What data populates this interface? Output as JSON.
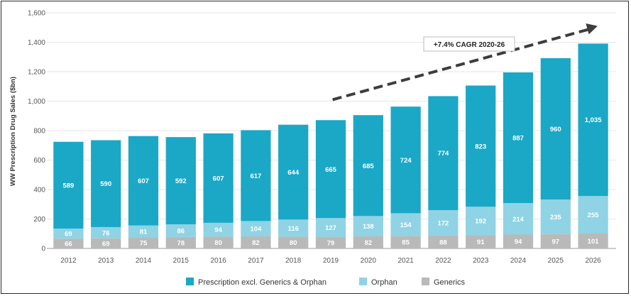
{
  "chart_data": {
    "type": "bar",
    "stacked": true,
    "ylabel": "WW Prescription Drug Sales ($bn)",
    "ylim": [
      0,
      1600
    ],
    "yticks": [
      "0",
      "200",
      "400",
      "600",
      "800",
      "1,000",
      "1,200",
      "1,400",
      "1,600"
    ],
    "ytick_values": [
      0,
      200,
      400,
      600,
      800,
      1000,
      1200,
      1400,
      1600
    ],
    "grid": true,
    "categories": [
      "2012",
      "2013",
      "2014",
      "2015",
      "2016",
      "2017",
      "2018",
      "2019",
      "2020",
      "2021",
      "2022",
      "2023",
      "2024",
      "2025",
      "2026"
    ],
    "series": [
      {
        "name": "Generics",
        "color": "#b9b9b9",
        "values": [
          66,
          69,
          75,
          78,
          80,
          82,
          80,
          79,
          82,
          85,
          88,
          91,
          94,
          97,
          101
        ],
        "labels": [
          "66",
          "69",
          "75",
          "78",
          "80",
          "82",
          "80",
          "79",
          "82",
          "85",
          "88",
          "91",
          "94",
          "97",
          "101"
        ]
      },
      {
        "name": "Orphan",
        "color": "#8fd3e4",
        "values": [
          69,
          76,
          81,
          86,
          94,
          104,
          116,
          127,
          138,
          154,
          172,
          192,
          214,
          235,
          255
        ],
        "labels": [
          "69",
          "76",
          "81",
          "86",
          "94",
          "104",
          "116",
          "127",
          "138",
          "154",
          "172",
          "192",
          "214",
          "235",
          "255"
        ]
      },
      {
        "name": "Prescription excl. Generics & Orphan",
        "color": "#1aa8c6",
        "values": [
          589,
          590,
          607,
          592,
          607,
          617,
          644,
          665,
          685,
          724,
          774,
          823,
          887,
          960,
          1035
        ],
        "labels": [
          "589",
          "590",
          "607",
          "592",
          "607",
          "617",
          "644",
          "665",
          "685",
          "724",
          "774",
          "823",
          "887",
          "960",
          "1,035"
        ]
      }
    ],
    "legend": {
      "position": "bottom",
      "items": [
        "Prescription excl. Generics & Orphan",
        "Orphan",
        "Generics"
      ]
    },
    "annotation": {
      "text": "+7.4% CAGR 2020-26",
      "from_category": "2020",
      "to_category": "2026"
    }
  }
}
